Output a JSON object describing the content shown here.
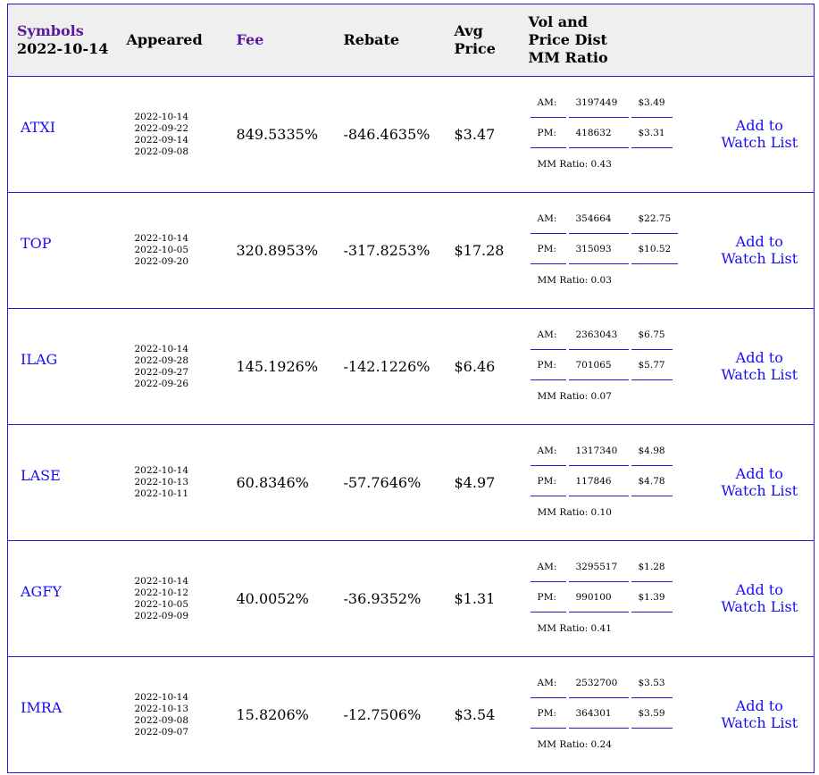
{
  "header": {
    "symbols": "Symbols",
    "date": "2022-10-14",
    "appeared": "Appeared",
    "fee": "Fee",
    "rebate": "Rebate",
    "avg_price": [
      "Avg",
      "Price"
    ],
    "vol": [
      "Vol and",
      "Price Dist",
      "MM Ratio"
    ]
  },
  "add_label": [
    "Add to",
    "Watch List"
  ],
  "am_label": "AM:",
  "pm_label": "PM:",
  "mm_prefix": "MM Ratio: ",
  "rows": [
    {
      "symbol": "ATXI",
      "appeared": [
        "2022-10-14",
        "2022-09-22",
        "2022-09-14",
        "2022-09-08"
      ],
      "fee": "849.5335%",
      "rebate": "-846.4635%",
      "avg": "$3.47",
      "am_vol": "3197449",
      "am_price": "$3.49",
      "pm_vol": "418632",
      "pm_price": "$3.31",
      "mm": "MM Ratio: 0.43"
    },
    {
      "symbol": "TOP",
      "appeared": [
        "2022-10-14",
        "2022-10-05",
        "2022-09-20"
      ],
      "fee": "320.8953%",
      "rebate": "-317.8253%",
      "avg": "$17.28",
      "am_vol": "354664",
      "am_price": "$22.75",
      "pm_vol": "315093",
      "pm_price": "$10.52",
      "mm": "MM Ratio: 0.03"
    },
    {
      "symbol": "ILAG",
      "appeared": [
        "2022-10-14",
        "2022-09-28",
        "2022-09-27",
        "2022-09-26"
      ],
      "fee": "145.1926%",
      "rebate": "-142.1226%",
      "avg": "$6.46",
      "am_vol": "2363043",
      "am_price": "$6.75",
      "pm_vol": "701065",
      "pm_price": "$5.77",
      "mm": "MM Ratio: 0.07"
    },
    {
      "symbol": "LASE",
      "appeared": [
        "2022-10-14",
        "2022-10-13",
        "2022-10-11"
      ],
      "fee": "60.8346%",
      "rebate": "-57.7646%",
      "avg": "$4.97",
      "am_vol": "1317340",
      "am_price": "$4.98",
      "pm_vol": "117846",
      "pm_price": "$4.78",
      "mm": "MM Ratio: 0.10"
    },
    {
      "symbol": "AGFY",
      "appeared": [
        "2022-10-14",
        "2022-10-12",
        "2022-10-05",
        "2022-09-09"
      ],
      "fee": "40.0052%",
      "rebate": "-36.9352%",
      "avg": "$1.31",
      "am_vol": "3295517",
      "am_price": "$1.28",
      "pm_vol": "990100",
      "pm_price": "$1.39",
      "mm": "MM Ratio: 0.41"
    },
    {
      "symbol": "IMRA",
      "appeared": [
        "2022-10-14",
        "2022-10-13",
        "2022-09-08",
        "2022-09-07"
      ],
      "fee": "15.8206%",
      "rebate": "-12.7506%",
      "avg": "$3.54",
      "am_vol": "2532700",
      "am_price": "$3.53",
      "pm_vol": "364301",
      "pm_price": "$3.59",
      "mm": "MM Ratio: 0.24"
    }
  ],
  "colors": {
    "border": "#3a10d0",
    "link": "#1a0ef2",
    "header_accent": "#5b1a99",
    "header_bg": "#efefef"
  }
}
